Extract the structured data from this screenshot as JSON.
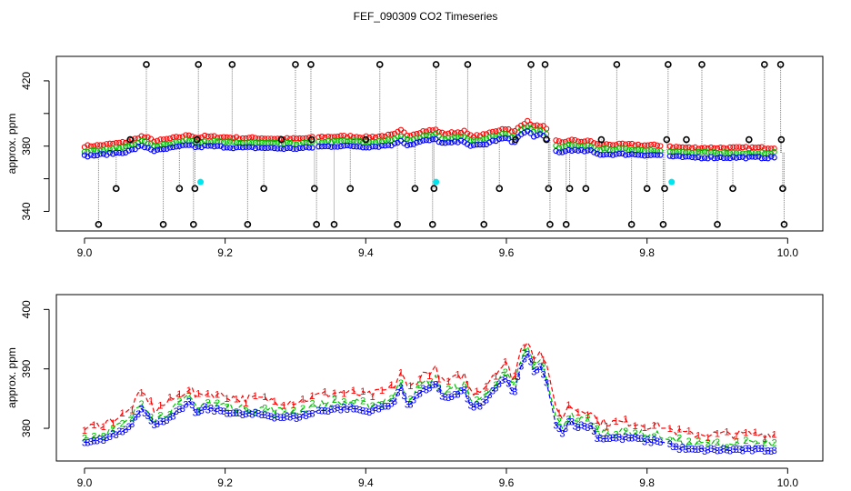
{
  "figure": {
    "title": "FEF_090309  CO2 Timeseries",
    "palette": {
      "series1": "#ff0000",
      "series2": "#00c000",
      "series3": "#0000ff",
      "calibration": "#000000",
      "marker": "#00e5ee",
      "dropline": "#808080"
    }
  },
  "chart_data": [
    {
      "type": "scatter",
      "title": "",
      "xlabel": "",
      "ylabel": "approx. ppm",
      "xlim": [
        8.96,
        10.05
      ],
      "ylim": [
        328,
        435
      ],
      "xticks": [
        9.0,
        9.2,
        9.4,
        9.6,
        9.8,
        10.0
      ],
      "xtick_labels": [
        "9.0",
        "9.2",
        "9.4",
        "9.6",
        "9.8",
        "10.0"
      ],
      "yticks": [
        340,
        360,
        380,
        400,
        420
      ],
      "ytick_labels": [
        "340",
        "",
        "380",
        "",
        "420"
      ],
      "grid": false,
      "series": [
        {
          "name": "calibration",
          "color": "#000000",
          "mode": "dropline",
          "points": [
            [
              9.02,
              332
            ],
            [
              9.045,
              354
            ],
            [
              9.065,
              384
            ],
            [
              9.088,
              430
            ],
            [
              9.112,
              332
            ],
            [
              9.135,
              354
            ],
            [
              9.155,
              332
            ],
            [
              9.157,
              354
            ],
            [
              9.16,
              384
            ],
            [
              9.162,
              430
            ],
            [
              9.21,
              430
            ],
            [
              9.232,
              332
            ],
            [
              9.255,
              354
            ],
            [
              9.28,
              384
            ],
            [
              9.3,
              430
            ],
            [
              9.322,
              430
            ],
            [
              9.323,
              384
            ],
            [
              9.327,
              354
            ],
            [
              9.33,
              332
            ],
            [
              9.355,
              332
            ],
            [
              9.378,
              354
            ],
            [
              9.4,
              384
            ],
            [
              9.42,
              430
            ],
            [
              9.445,
              332
            ],
            [
              9.47,
              354
            ],
            [
              9.495,
              332
            ],
            [
              9.497,
              354
            ],
            [
              9.5,
              430
            ],
            [
              9.545,
              430
            ],
            [
              9.568,
              332
            ],
            [
              9.59,
              354
            ],
            [
              9.613,
              384
            ],
            [
              9.635,
              430
            ],
            [
              9.655,
              430
            ],
            [
              9.657,
              384
            ],
            [
              9.66,
              354
            ],
            [
              9.662,
              332
            ],
            [
              9.685,
              332
            ],
            [
              9.69,
              354
            ],
            [
              9.713,
              354
            ],
            [
              9.735,
              384
            ],
            [
              9.757,
              430
            ],
            [
              9.778,
              332
            ],
            [
              9.8,
              354
            ],
            [
              9.823,
              332
            ],
            [
              9.825,
              354
            ],
            [
              9.828,
              384
            ],
            [
              9.83,
              430
            ],
            [
              9.856,
              384
            ],
            [
              9.878,
              430
            ],
            [
              9.9,
              332
            ],
            [
              9.922,
              354
            ],
            [
              9.945,
              384
            ],
            [
              9.967,
              430
            ],
            [
              9.99,
              430
            ],
            [
              9.991,
              384
            ],
            [
              9.993,
              354
            ],
            [
              9.995,
              332
            ]
          ]
        },
        {
          "name": "cyan",
          "color": "#00e5ee",
          "mode": "filled",
          "points": [
            [
              9.165,
              358
            ],
            [
              9.5,
              358
            ],
            [
              9.835,
              358
            ]
          ]
        }
      ],
      "profile_series": [
        {
          "name": "1",
          "color": "#ff0000",
          "offset": 0
        },
        {
          "name": "2",
          "color": "#00c000",
          "offset": -3
        },
        {
          "name": "3",
          "color": "#0000ff",
          "offset": -6
        }
      ]
    },
    {
      "type": "line",
      "title": "",
      "xlabel": "",
      "ylabel": "approx. ppm",
      "xlim": [
        8.96,
        10.05
      ],
      "ylim": [
        374.5,
        402.5
      ],
      "xticks": [
        9.0,
        9.2,
        9.4,
        9.6,
        9.8,
        10.0
      ],
      "xtick_labels": [
        "9.0",
        "9.2",
        "9.4",
        "9.6",
        "9.8",
        "10.0"
      ],
      "yticks": [
        380,
        390,
        400
      ],
      "ytick_labels": [
        "380",
        "390",
        "400"
      ],
      "grid": false,
      "series": [
        {
          "name": "1",
          "label": "1",
          "color": "#ff0000",
          "offset": 0
        },
        {
          "name": "2",
          "label": "2",
          "color": "#00c000",
          "offset": -1.6
        },
        {
          "name": "3",
          "label": "3",
          "color": "#0000ff",
          "offset": -2.6
        }
      ],
      "profile": {
        "x": [
          9.0,
          9.02,
          9.04,
          9.06,
          9.07,
          9.08,
          9.09,
          9.1,
          9.12,
          9.14,
          9.15,
          9.16,
          9.17,
          9.2,
          9.22,
          9.25,
          9.28,
          9.3,
          9.32,
          9.33,
          9.36,
          9.38,
          9.4,
          9.42,
          9.44,
          9.45,
          9.46,
          9.48,
          9.5,
          9.51,
          9.52,
          9.54,
          9.55,
          9.57,
          9.58,
          9.6,
          9.61,
          9.62,
          9.63,
          9.64,
          9.65,
          9.66,
          9.67,
          9.68,
          9.69,
          9.7,
          9.72,
          9.73,
          9.75,
          9.78,
          9.8,
          9.82,
          9.83,
          9.835,
          9.84,
          9.86,
          9.9,
          9.95,
          9.99
        ],
        "y": [
          380,
          380.5,
          381.5,
          382.5,
          384,
          386,
          385,
          383,
          384.5,
          386,
          387,
          385,
          386,
          385.5,
          385,
          385,
          384.5,
          384.5,
          385,
          385.5,
          386,
          386,
          385.5,
          386,
          387,
          389.5,
          386.5,
          389,
          390,
          387.5,
          388,
          389,
          386,
          387,
          389,
          391,
          388,
          393,
          395,
          392,
          393,
          389,
          383,
          382,
          384,
          383,
          383,
          381,
          381,
          381,
          380.5,
          380.5,
          380.5,
          379.5,
          379.5,
          379,
          379,
          379,
          379
        ]
      }
    }
  ]
}
